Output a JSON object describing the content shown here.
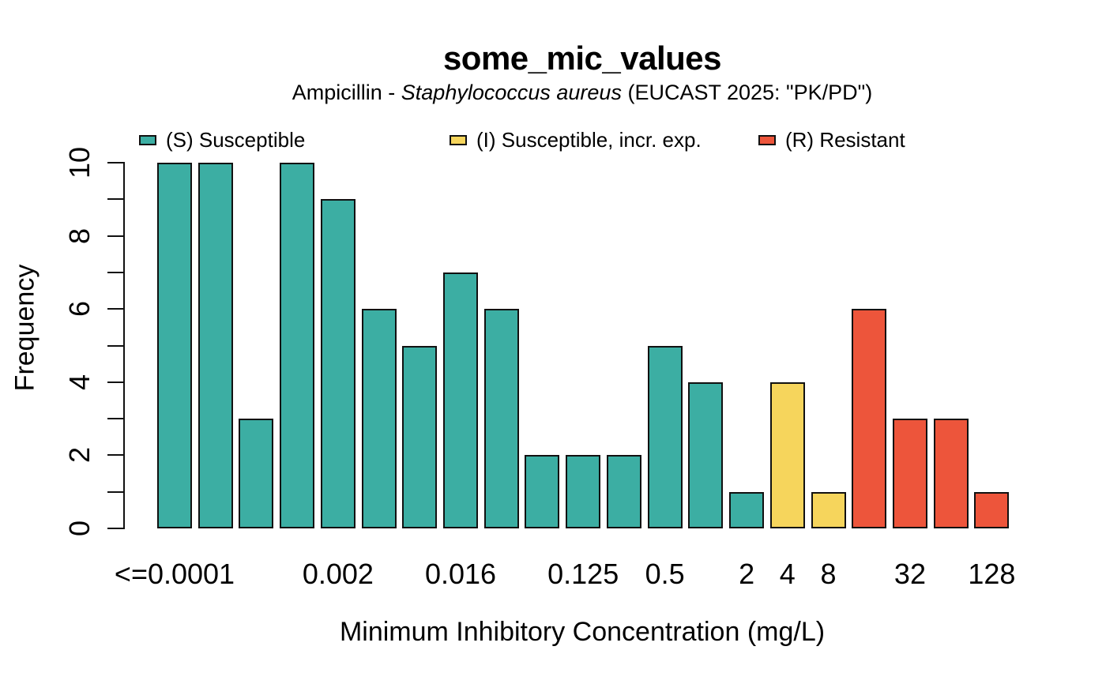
{
  "header": {
    "title": "some_mic_values",
    "subtitle": {
      "prefix": "Ampicillin - ",
      "species": "Staphylococcus aureus",
      "suffix": " (EUCAST 2025: \"PK/PD\")"
    }
  },
  "legend": {
    "items": [
      {
        "key": "S",
        "label": "(S) Susceptible",
        "color": "#3CAEA3"
      },
      {
        "key": "I",
        "label": "(I) Susceptible, incr. exp.",
        "color": "#F6D55C"
      },
      {
        "key": "R",
        "label": "(R) Resistant",
        "color": "#ED553B"
      }
    ]
  },
  "chart_data": {
    "type": "bar",
    "title": "some_mic_values",
    "subtitle": "Ampicillin - Staphylococcus aureus (EUCAST 2025: \"PK/PD\")",
    "xlabel": "Minimum Inhibitory Concentration (mg/L)",
    "ylabel": "Frequency",
    "ylim": [
      0,
      10
    ],
    "y_tick_step": 1,
    "y_tick_labels": [
      0,
      2,
      4,
      6,
      8,
      10
    ],
    "grid": false,
    "legend_position": "top",
    "bars": [
      {
        "value": 10,
        "sir": "S"
      },
      {
        "value": 10,
        "sir": "S"
      },
      {
        "value": 3,
        "sir": "S"
      },
      {
        "value": 10,
        "sir": "S"
      },
      {
        "value": 9,
        "sir": "S"
      },
      {
        "value": 6,
        "sir": "S"
      },
      {
        "value": 5,
        "sir": "S"
      },
      {
        "value": 7,
        "sir": "S"
      },
      {
        "value": 6,
        "sir": "S"
      },
      {
        "value": 2,
        "sir": "S"
      },
      {
        "value": 2,
        "sir": "S"
      },
      {
        "value": 2,
        "sir": "S"
      },
      {
        "value": 5,
        "sir": "S"
      },
      {
        "value": 4,
        "sir": "S"
      },
      {
        "value": 1,
        "sir": "S"
      },
      {
        "value": 4,
        "sir": "I"
      },
      {
        "value": 1,
        "sir": "I"
      },
      {
        "value": 6,
        "sir": "R"
      },
      {
        "value": 3,
        "sir": "R"
      },
      {
        "value": 3,
        "sir": "R"
      },
      {
        "value": 1,
        "sir": "R"
      }
    ],
    "x_tick_labels": [
      {
        "label": "<=0.0001",
        "bar": 1
      },
      {
        "label": "0.002",
        "bar": 5
      },
      {
        "label": "0.016",
        "bar": 8
      },
      {
        "label": "0.125",
        "bar": 11
      },
      {
        "label": "0.5",
        "bar": 13
      },
      {
        "label": "2",
        "bar": 15
      },
      {
        "label": "4",
        "bar": 16
      },
      {
        "label": "8",
        "bar": 17
      },
      {
        "label": "32",
        "bar": 19
      },
      {
        "label": "128",
        "bar": 21
      }
    ],
    "colors": {
      "S": "#3CAEA3",
      "I": "#F6D55C",
      "R": "#ED553B"
    }
  }
}
